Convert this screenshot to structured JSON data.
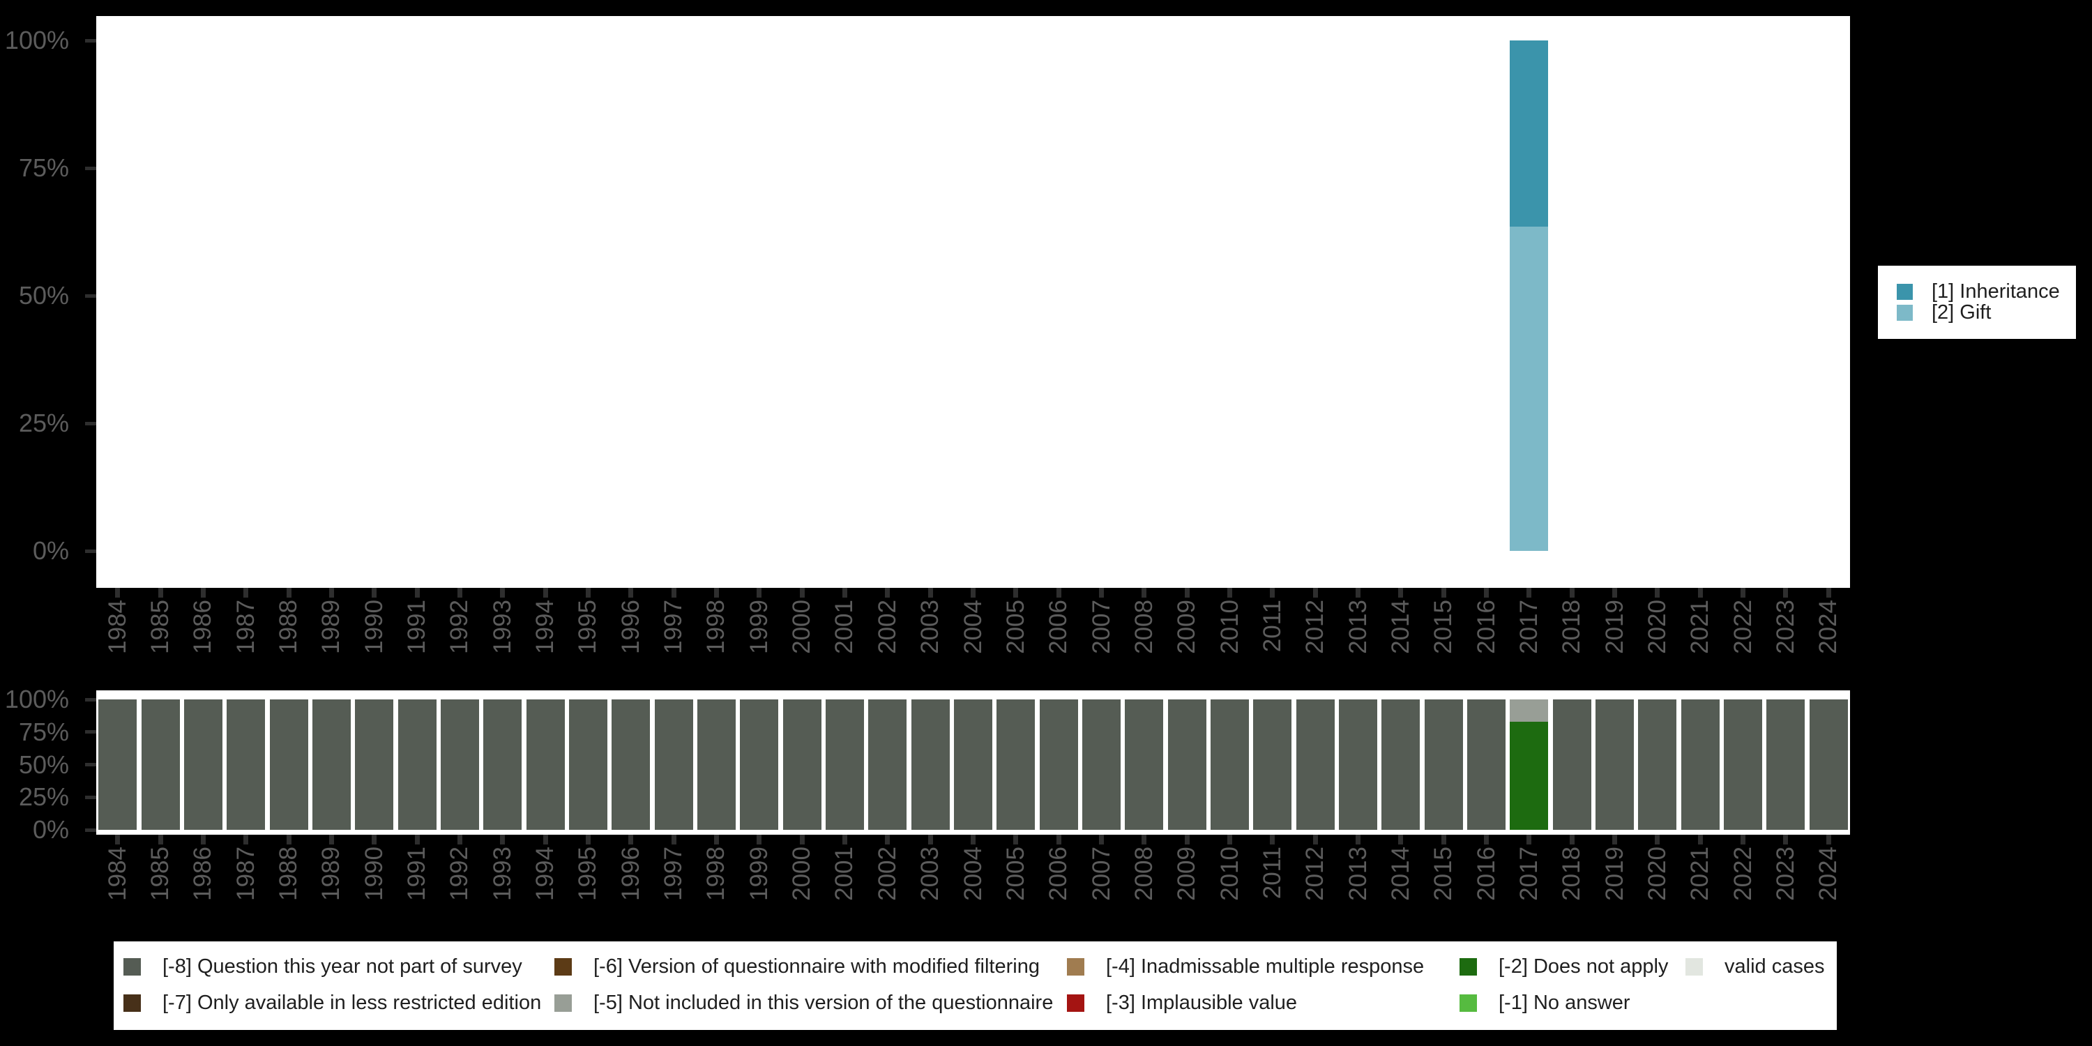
{
  "colors": {
    "background": "#000000",
    "panel": "#ffffff",
    "axis_text": "#5c5c5c",
    "tick_mark": "#2e2e2e",
    "legend_text": "#1f1f1f",
    "inheritance": "#3B94AB",
    "gift": "#7DB9C8",
    "m8": "#555C54",
    "m7": "#473019",
    "m6": "#5C3B16",
    "m5": "#989E96",
    "m4": "#A07C50",
    "m3": "#A41412",
    "m2": "#1D6B10",
    "m1": "#56BB40",
    "valid": "#E2E6E0"
  },
  "chart_data": [
    {
      "id": "top",
      "type": "bar",
      "stacked": true,
      "title": "",
      "xlabel": "",
      "ylabel": "",
      "ylim": [
        0,
        100
      ],
      "grid": false,
      "legend_position": "right",
      "y_tick_values": [
        0,
        25,
        50,
        75,
        100
      ],
      "y_tick_labels": [
        "0%",
        "25%",
        "50%",
        "75%",
        "100%"
      ],
      "categories": [
        "1984",
        "1985",
        "1986",
        "1987",
        "1988",
        "1989",
        "1990",
        "1991",
        "1992",
        "1993",
        "1994",
        "1995",
        "1996",
        "1997",
        "1998",
        "1999",
        "2000",
        "2001",
        "2002",
        "2003",
        "2004",
        "2005",
        "2006",
        "2007",
        "2008",
        "2009",
        "2010",
        "2011",
        "2012",
        "2013",
        "2014",
        "2015",
        "2016",
        "2017",
        "2018",
        "2019",
        "2020",
        "2021",
        "2022",
        "2023",
        "2024"
      ],
      "series": [
        {
          "name": "[2] Gift",
          "color_key": "gift",
          "values": {
            "2017": 63.5
          }
        },
        {
          "name": "[1] Inheritance",
          "color_key": "inheritance",
          "values": {
            "2017": 36.5
          }
        }
      ],
      "bars": {
        "2017": [
          [
            "gift",
            63.5
          ],
          [
            "inheritance",
            36.5
          ]
        ]
      }
    },
    {
      "id": "bottom",
      "type": "bar",
      "stacked": true,
      "title": "",
      "xlabel": "",
      "ylabel": "",
      "ylim": [
        0,
        100
      ],
      "grid": false,
      "legend_position": "bottom",
      "y_tick_values": [
        0,
        25,
        50,
        75,
        100
      ],
      "y_tick_labels": [
        "0%",
        "25%",
        "50%",
        "75%",
        "100%"
      ],
      "categories": [
        "1984",
        "1985",
        "1986",
        "1987",
        "1988",
        "1989",
        "1990",
        "1991",
        "1992",
        "1993",
        "1994",
        "1995",
        "1996",
        "1997",
        "1998",
        "1999",
        "2000",
        "2001",
        "2002",
        "2003",
        "2004",
        "2005",
        "2006",
        "2007",
        "2008",
        "2009",
        "2010",
        "2011",
        "2012",
        "2013",
        "2014",
        "2015",
        "2016",
        "2017",
        "2018",
        "2019",
        "2020",
        "2021",
        "2022",
        "2023",
        "2024"
      ],
      "bars": {
        "1984": [
          [
            "m8",
            100
          ]
        ],
        "1985": [
          [
            "m8",
            100
          ]
        ],
        "1986": [
          [
            "m8",
            100
          ]
        ],
        "1987": [
          [
            "m8",
            100
          ]
        ],
        "1988": [
          [
            "m8",
            100
          ]
        ],
        "1989": [
          [
            "m8",
            100
          ]
        ],
        "1990": [
          [
            "m8",
            100
          ]
        ],
        "1991": [
          [
            "m8",
            100
          ]
        ],
        "1992": [
          [
            "m8",
            100
          ]
        ],
        "1993": [
          [
            "m8",
            100
          ]
        ],
        "1994": [
          [
            "m8",
            100
          ]
        ],
        "1995": [
          [
            "m8",
            100
          ]
        ],
        "1996": [
          [
            "m8",
            100
          ]
        ],
        "1997": [
          [
            "m8",
            100
          ]
        ],
        "1998": [
          [
            "m8",
            100
          ]
        ],
        "1999": [
          [
            "m8",
            100
          ]
        ],
        "2000": [
          [
            "m8",
            100
          ]
        ],
        "2001": [
          [
            "m8",
            100
          ]
        ],
        "2002": [
          [
            "m8",
            100
          ]
        ],
        "2003": [
          [
            "m8",
            100
          ]
        ],
        "2004": [
          [
            "m8",
            100
          ]
        ],
        "2005": [
          [
            "m8",
            100
          ]
        ],
        "2006": [
          [
            "m8",
            100
          ]
        ],
        "2007": [
          [
            "m8",
            100
          ]
        ],
        "2008": [
          [
            "m8",
            100
          ]
        ],
        "2009": [
          [
            "m8",
            100
          ]
        ],
        "2010": [
          [
            "m8",
            100
          ]
        ],
        "2011": [
          [
            "m8",
            100
          ]
        ],
        "2012": [
          [
            "m8",
            100
          ]
        ],
        "2013": [
          [
            "m8",
            100
          ]
        ],
        "2014": [
          [
            "m8",
            100
          ]
        ],
        "2015": [
          [
            "m8",
            100
          ]
        ],
        "2016": [
          [
            "m8",
            100
          ]
        ],
        "2017": [
          [
            "m2",
            83
          ],
          [
            "m5",
            17
          ]
        ],
        "2018": [
          [
            "m8",
            100
          ]
        ],
        "2019": [
          [
            "m8",
            100
          ]
        ],
        "2020": [
          [
            "m8",
            100
          ]
        ],
        "2021": [
          [
            "m8",
            100
          ]
        ],
        "2022": [
          [
            "m8",
            100
          ]
        ],
        "2023": [
          [
            "m8",
            100
          ]
        ],
        "2024": [
          [
            "m8",
            100
          ]
        ]
      }
    }
  ],
  "legend_right": {
    "items": [
      {
        "label": "[1] Inheritance",
        "color_key": "inheritance"
      },
      {
        "label": "[2] Gift",
        "color_key": "gift"
      }
    ]
  },
  "legend_bottom": {
    "items": [
      {
        "label": "[-8] Question this year not part of survey",
        "color_key": "m8",
        "row": 0,
        "col": 0
      },
      {
        "label": "[-7] Only available in less restricted edition",
        "color_key": "m7",
        "row": 1,
        "col": 0
      },
      {
        "label": "[-6] Version of questionnaire with modified filtering",
        "color_key": "m6",
        "row": 0,
        "col": 1
      },
      {
        "label": "[-5] Not included in this version of the questionnaire",
        "color_key": "m5",
        "row": 1,
        "col": 1
      },
      {
        "label": "[-4] Inadmissable multiple response",
        "color_key": "m4",
        "row": 0,
        "col": 2
      },
      {
        "label": "[-3] Implausible value",
        "color_key": "m3",
        "row": 1,
        "col": 2
      },
      {
        "label": "[-2] Does not apply",
        "color_key": "m2",
        "row": 0,
        "col": 3
      },
      {
        "label": "[-1] No answer",
        "color_key": "m1",
        "row": 1,
        "col": 3
      },
      {
        "label": "valid cases",
        "color_key": "valid",
        "row": 0,
        "col": 4
      }
    ]
  }
}
